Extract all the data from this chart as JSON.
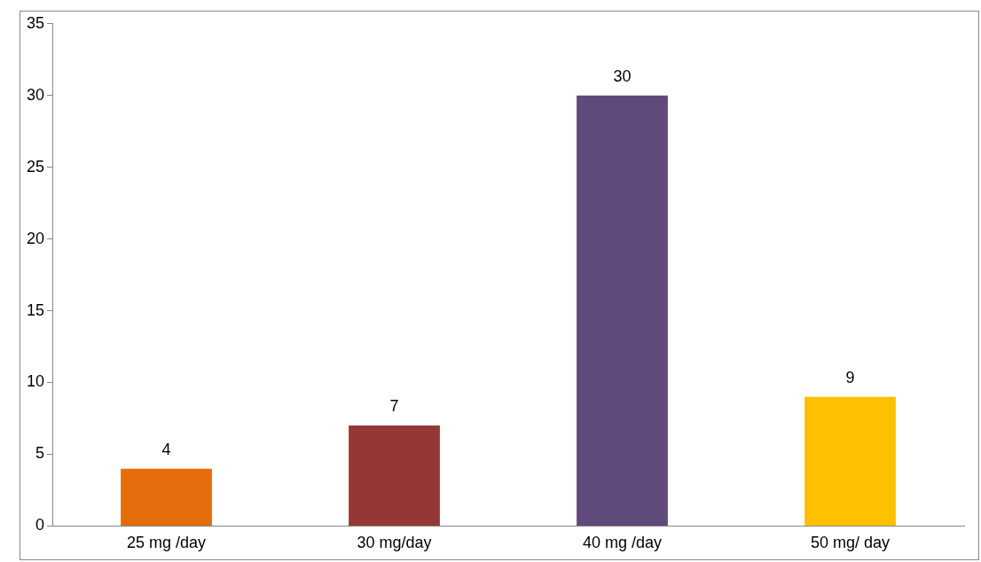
{
  "chart_data": {
    "type": "bar",
    "categories": [
      "25 mg /day",
      "30 mg/day",
      "40 mg /day",
      "50 mg/ day"
    ],
    "values": [
      4,
      7,
      30,
      9
    ],
    "colors": [
      "#e46c0a",
      "#953735",
      "#604a7b",
      "#ffc000"
    ],
    "ylim": [
      0,
      35
    ],
    "yticks": [
      0,
      5,
      10,
      15,
      20,
      25,
      30,
      35
    ],
    "grid": false,
    "data_labels": true
  }
}
